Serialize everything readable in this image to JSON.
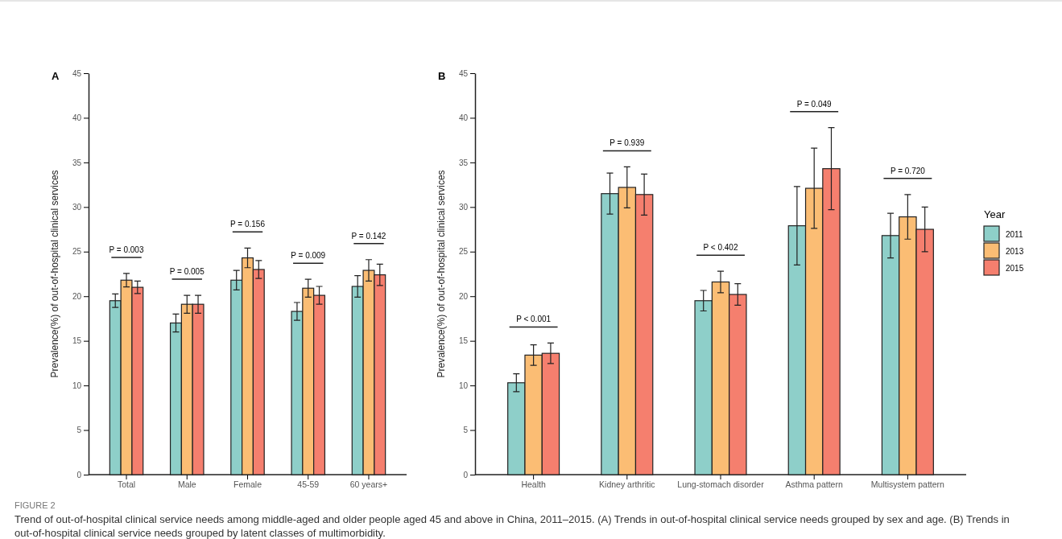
{
  "chart_data": [
    {
      "type": "bar",
      "title": "A",
      "ylabel": "Prevalence(%) of out-of-hospital clinical services",
      "categories": [
        "Total",
        "Male",
        "Female",
        "45-59",
        "60 years+"
      ],
      "series": [
        {
          "color": "#8ecfc9",
          "values": [
            19.5,
            17.0,
            21.8,
            18.3,
            21.1
          ],
          "errors": [
            0.75,
            1.0,
            1.1,
            1.0,
            1.2
          ]
        },
        {
          "color": "#fbbd74",
          "values": [
            21.8,
            19.1,
            24.3,
            20.9,
            22.9
          ],
          "errors": [
            0.75,
            1.0,
            1.1,
            1.0,
            1.2
          ]
        },
        {
          "color": "#f57f6e",
          "values": [
            21.0,
            19.1,
            23.0,
            20.1,
            22.4
          ],
          "errors": [
            0.7,
            1.0,
            1.0,
            1.0,
            1.2
          ]
        }
      ],
      "ylim": [
        0,
        45
      ],
      "yticks": [
        0,
        5,
        10,
        15,
        20,
        25,
        30,
        35,
        40,
        45
      ],
      "grid": false,
      "legend": false,
      "annotations": [
        "P = 0.003",
        "P = 0.005",
        "P = 0.156",
        "P = 0.009",
        "P = 0.142"
      ]
    },
    {
      "type": "bar",
      "title": "B",
      "ylabel": "Prevalence(%) of out-of-hospital clinical services",
      "legend_title": "Year",
      "categories": [
        "Health",
        "Kidney arthritic",
        "Lung-stomach disorder",
        "Asthma pattern",
        "Multisystem pattern"
      ],
      "series": [
        {
          "name": "2011",
          "color": "#8ecfc9",
          "values": [
            10.3,
            31.5,
            19.5,
            27.9,
            26.8
          ],
          "errors": [
            1.0,
            2.3,
            1.15,
            4.4,
            2.5
          ]
        },
        {
          "name": "2013",
          "color": "#fbbd74",
          "values": [
            13.4,
            32.2,
            21.6,
            32.1,
            28.9
          ],
          "errors": [
            1.15,
            2.3,
            1.2,
            4.5,
            2.5
          ]
        },
        {
          "name": "2015",
          "color": "#f57f6e",
          "values": [
            13.6,
            31.4,
            20.2,
            34.3,
            27.5
          ],
          "errors": [
            1.15,
            2.3,
            1.2,
            4.6,
            2.5
          ]
        }
      ],
      "ylim": [
        0,
        45
      ],
      "yticks": [
        0,
        5,
        10,
        15,
        20,
        25,
        30,
        35,
        40,
        45
      ],
      "grid": false,
      "legend": "right",
      "annotations": [
        "P < 0.001",
        "P = 0.939",
        "P < 0.402",
        "P = 0.049",
        "P = 0.720",
        "FIGURE 2",
        "Trend of out-of-hospital clinical service needs among middle-aged and older people aged 45 and above in China, 2011–2015. (A) Trends in out-of-hospital clinical service needs grouped by sex and age. (B) Trends in out-of-hospital clinical service needs grouped by latent classes of multimorbidity."
      ]
    }
  ]
}
